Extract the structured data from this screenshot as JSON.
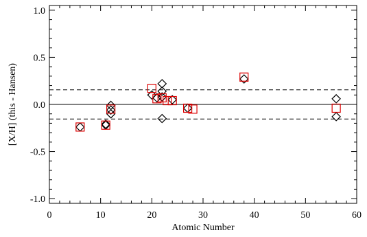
{
  "chart_data": {
    "type": "scatter",
    "title": "",
    "xlabel": "Atomic Number",
    "ylabel": "[X/H] (this - Hansen)",
    "xlim": [
      0,
      60
    ],
    "ylim": [
      -1.05,
      1.05
    ],
    "x_ticks": [
      0,
      10,
      20,
      30,
      40,
      50,
      60
    ],
    "x_tick_labels": [
      "0",
      "10",
      "20",
      "30",
      "40",
      "50",
      "60"
    ],
    "y_ticks": [
      -1.0,
      -0.5,
      0.0,
      0.5,
      1.0
    ],
    "y_tick_labels": [
      "-1.0",
      "-0.5",
      "0.0",
      "0.5",
      "1.0"
    ],
    "grid": false,
    "reference_lines": [
      {
        "y": 0.0,
        "style": "solid",
        "color": "#000000"
      },
      {
        "y": 0.155,
        "style": "dashed",
        "color": "#000000"
      },
      {
        "y": -0.155,
        "style": "dashed",
        "color": "#000000"
      }
    ],
    "series": [
      {
        "marker": "diamond",
        "color": "#000000",
        "points": [
          {
            "x": 6,
            "y": -0.24
          },
          {
            "x": 11,
            "y": -0.21
          },
          {
            "x": 11,
            "y": -0.22
          },
          {
            "x": 12,
            "y": -0.01
          },
          {
            "x": 12,
            "y": -0.06
          },
          {
            "x": 12,
            "y": -0.1
          },
          {
            "x": 20,
            "y": 0.1
          },
          {
            "x": 21,
            "y": 0.07
          },
          {
            "x": 22,
            "y": 0.22
          },
          {
            "x": 22,
            "y": 0.14
          },
          {
            "x": 22,
            "y": 0.08
          },
          {
            "x": 22,
            "y": -0.15
          },
          {
            "x": 24,
            "y": 0.05
          },
          {
            "x": 27,
            "y": -0.04
          },
          {
            "x": 38,
            "y": 0.27
          },
          {
            "x": 56,
            "y": 0.06
          },
          {
            "x": 56,
            "y": -0.13
          }
        ]
      },
      {
        "marker": "square",
        "color": "#dd0000",
        "points": [
          {
            "x": 6,
            "y": -0.24
          },
          {
            "x": 11,
            "y": -0.22
          },
          {
            "x": 12,
            "y": -0.05
          },
          {
            "x": 20,
            "y": 0.17
          },
          {
            "x": 21,
            "y": 0.06
          },
          {
            "x": 22,
            "y": 0.07
          },
          {
            "x": 23,
            "y": 0.04
          },
          {
            "x": 24,
            "y": 0.04
          },
          {
            "x": 27,
            "y": -0.04
          },
          {
            "x": 28,
            "y": -0.05
          },
          {
            "x": 38,
            "y": 0.29
          },
          {
            "x": 56,
            "y": -0.04
          }
        ]
      }
    ]
  }
}
